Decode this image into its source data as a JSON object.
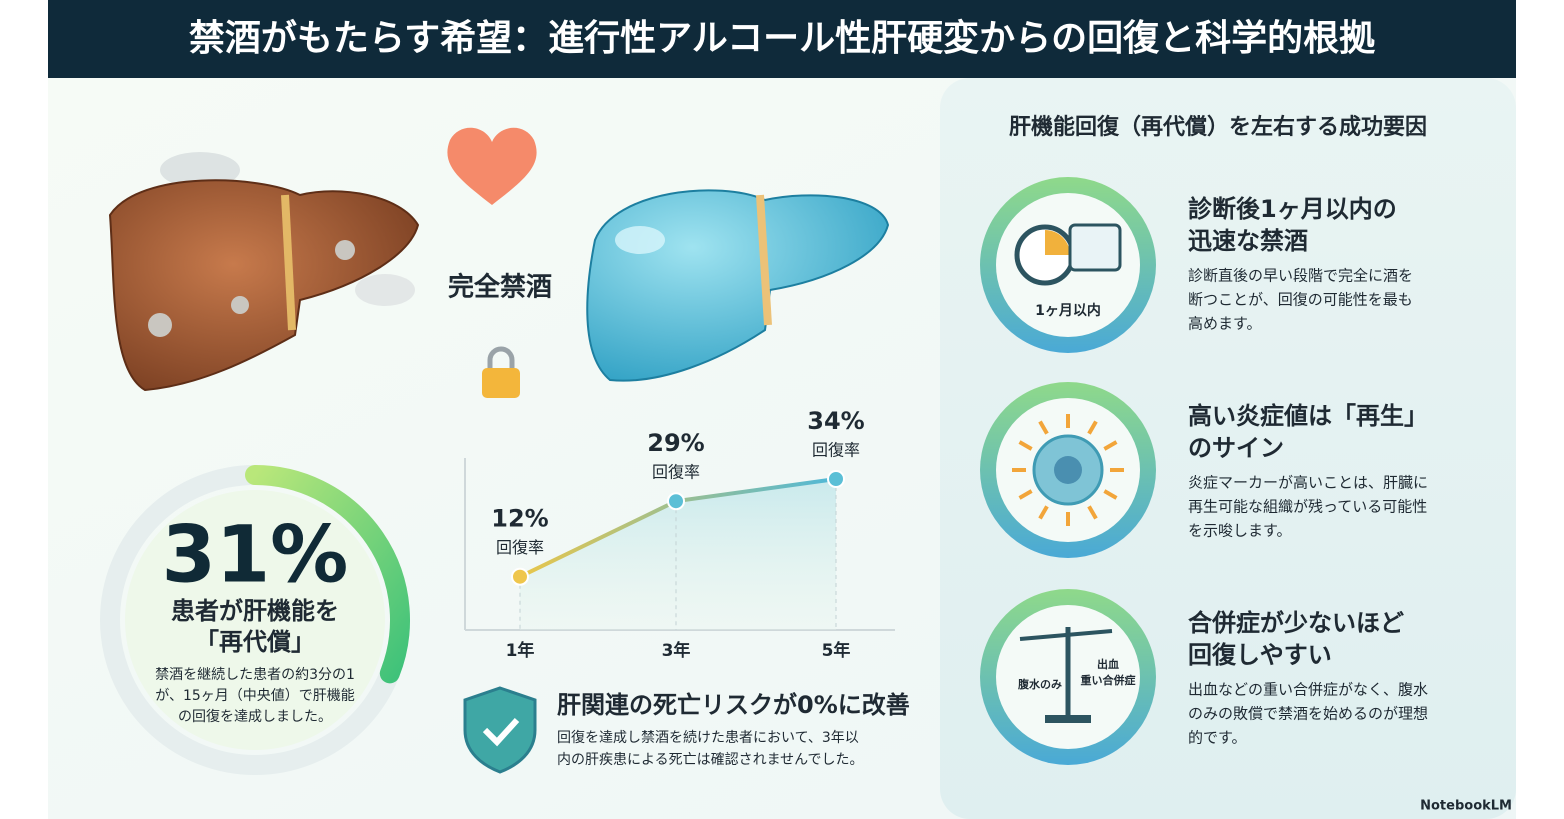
{
  "title": "禁酒がもたらす希望：進行性アルコール性肝硬変からの回復と科学的根拠",
  "illustration": {
    "label": "完全禁酒"
  },
  "recovery": {
    "value": 31,
    "value_label": "31%",
    "heading": [
      "患者が肝機能を",
      "「再代償」"
    ],
    "body": [
      "禁酒を継続した患者の約3分の1",
      "が、15ヶ月（中央値）で肝機能",
      "の回復を達成しました。"
    ]
  },
  "chart_data": {
    "type": "line",
    "categories": [
      "1年",
      "3年",
      "5年"
    ],
    "values": [
      12,
      29,
      34
    ],
    "value_labels": [
      "12%",
      "29%",
      "34%"
    ],
    "point_label": "回復率",
    "color": "#5bbfd6"
  },
  "mortality": {
    "heading": "肝関連の死亡リスクが0%に改善",
    "body": [
      "回復を達成し禁酒を続けた患者において、3年以",
      "内の肝疾患による死亡は確認されませんでした。"
    ]
  },
  "factors": {
    "title": "肝機能回復（再代償）を左右する成功要因",
    "items": [
      {
        "icon_labels": [
          "1ヶ月以内"
        ],
        "heading": [
          "診断後1ヶ月以内の",
          "迅速な禁酒"
        ],
        "body": [
          "診断直後の早い段階で完全に酒を",
          "断つことが、回復の可能性を最も",
          "高めます。"
        ]
      },
      {
        "icon_labels": [],
        "heading": [
          "高い炎症値は「再生」",
          "のサイン"
        ],
        "body": [
          "炎症マーカーが高いことは、肝臓に",
          "再生可能な組織が残っている可能性",
          "を示唆します。"
        ]
      },
      {
        "icon_labels": [
          "腹水のみ",
          "出血",
          "重い合併症"
        ],
        "heading": [
          "合併症が少ないほど",
          "回復しやすい"
        ],
        "body": [
          "出血などの重い合併症がなく、腹水",
          "のみの敗償で禁酒を始めるのが理想",
          "的です。"
        ]
      }
    ]
  },
  "footer": "NotebookLM"
}
